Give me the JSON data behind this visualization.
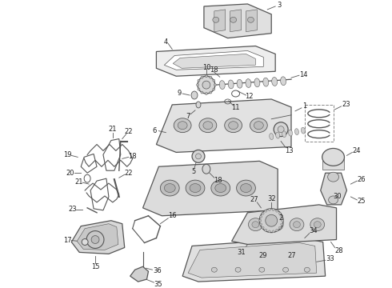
{
  "background_color": "#ffffff",
  "line_color": "#555555",
  "label_color": "#222222",
  "label_fontsize": 6.0,
  "fig_w": 4.9,
  "fig_h": 3.6,
  "dpi": 100
}
